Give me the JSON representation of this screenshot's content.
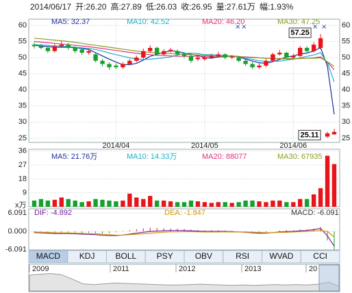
{
  "header": [
    "2014/06/17",
    "开:26.20",
    "高:27.89",
    "低:26.03",
    "收:26.95",
    "量:27.61万",
    "幅:1.93%"
  ],
  "chart_data": [
    {
      "type": "candlestick",
      "categories": [
        null,
        null,
        null,
        null,
        null,
        null,
        null,
        null,
        null,
        null,
        null,
        null,
        "2014/04",
        null,
        null,
        null,
        null,
        null,
        null,
        null,
        null,
        null,
        null,
        null,
        null,
        "2014/05",
        null,
        null,
        null,
        null,
        null,
        null,
        null,
        null,
        null,
        null,
        null,
        null,
        "2014/06",
        null,
        null,
        null,
        null,
        null,
        null
      ],
      "open": [
        54,
        53.5,
        53,
        52,
        53.5,
        54,
        53,
        52.5,
        51.5,
        51,
        49,
        48,
        47.5,
        47,
        48,
        49,
        50,
        52,
        53,
        51,
        52,
        52,
        51,
        50.5,
        49.5,
        49.5,
        50,
        50.5,
        51,
        50,
        50,
        49,
        48,
        47,
        47.5,
        49,
        51,
        51.5,
        50,
        50.5,
        53,
        52,
        53,
        25.5,
        26.2
      ],
      "high": [
        54.8,
        54.2,
        53.6,
        54.2,
        55,
        54.6,
        53.5,
        53,
        52.8,
        51.4,
        49.6,
        48.5,
        48.2,
        48.6,
        49.5,
        50.6,
        52.8,
        53.8,
        53.4,
        52.6,
        53,
        52.5,
        51.6,
        51,
        50.7,
        50.5,
        51.2,
        51.8,
        51.4,
        50.8,
        50.4,
        49.5,
        48.6,
        48.2,
        49.6,
        51.5,
        52.3,
        51.8,
        51.2,
        53.6,
        53.5,
        54.8,
        57.25,
        27,
        27.89
      ],
      "low": [
        52.8,
        52.5,
        51.4,
        51.6,
        53,
        52.4,
        51.4,
        50.8,
        50.9,
        48.5,
        47.2,
        46.2,
        46.4,
        46.5,
        47.6,
        48.6,
        49.6,
        51.5,
        50.5,
        50.6,
        51.5,
        50.4,
        49.8,
        48.3,
        48.9,
        49,
        49.6,
        50,
        49.4,
        49.5,
        48.5,
        47.4,
        46.4,
        46.5,
        47,
        48.6,
        50.6,
        49.5,
        49.6,
        50.2,
        51.4,
        51.6,
        52.5,
        25.11,
        26.03
      ],
      "close": [
        53.5,
        53,
        52,
        53.5,
        54,
        53,
        52,
        51.5,
        52,
        49,
        48,
        47,
        47,
        48,
        49,
        50,
        52,
        53,
        51,
        52,
        52.4,
        51,
        50.5,
        49,
        50,
        50,
        50.5,
        51,
        50,
        50.3,
        49,
        48,
        47,
        47.5,
        49,
        51,
        51.5,
        50,
        50.5,
        53,
        52,
        54,
        56,
        26.5,
        26.95
      ],
      "up_color": "#e8141a",
      "down_color": "#16a02e",
      "series": [
        {
          "name": "MA5: 32.37",
          "color": "#1c2a9a",
          "values": [
            53.8,
            53.6,
            53.4,
            53.2,
            53.2,
            53.2,
            53.1,
            52.8,
            52.5,
            51.5,
            50.5,
            49.5,
            48.6,
            47.8,
            47.8,
            48.2,
            49.2,
            50.4,
            51,
            51.6,
            52.1,
            51.9,
            51.4,
            51,
            50.6,
            50,
            49.8,
            50.2,
            50.3,
            50.4,
            50.2,
            49.5,
            48.9,
            48.4,
            48.2,
            48.7,
            49.4,
            50.2,
            50.5,
            51.1,
            51.4,
            52,
            53.1,
            47.3,
            32.37
          ]
        },
        {
          "name": "MA10: 42.52",
          "color": "#1aaec4",
          "values": [
            54,
            53.9,
            53.8,
            53.6,
            53.5,
            53.4,
            53.2,
            53,
            52.8,
            52.5,
            52,
            51.4,
            50.9,
            50.4,
            49.9,
            49.5,
            49.4,
            49.5,
            49.7,
            49.9,
            50.2,
            50.8,
            51.2,
            51.4,
            51.2,
            50.9,
            50.9,
            50.8,
            50.6,
            50.5,
            50.4,
            49.8,
            49.4,
            49,
            48.8,
            48.8,
            48.9,
            49.2,
            49.5,
            49.9,
            50.4,
            50.8,
            51.5,
            48.3,
            42.52
          ]
        },
        {
          "name": "MA20: 46.20",
          "color": "#e0307a",
          "values": [
            55,
            54.8,
            54.6,
            54.4,
            54.2,
            54,
            53.8,
            53.6,
            53.4,
            53.1,
            52.8,
            52.5,
            52.2,
            51.9,
            51.6,
            51.3,
            51.1,
            50.9,
            50.7,
            50.6,
            50.5,
            50.4,
            50.4,
            50.4,
            50.4,
            50.4,
            50.4,
            50.4,
            50.4,
            50.4,
            50.3,
            50.2,
            50.1,
            49.9,
            49.8,
            49.7,
            49.6,
            49.6,
            49.6,
            49.7,
            49.8,
            49.9,
            50.2,
            48.6,
            46.2
          ]
        },
        {
          "name": "MA30: 47.25",
          "color": "#8a9a1e",
          "values": [
            56,
            55.8,
            55.6,
            55.4,
            55.2,
            55,
            54.7,
            54.4,
            54.1,
            53.8,
            53.5,
            53.2,
            52.9,
            52.6,
            52.3,
            52,
            51.8,
            51.6,
            51.4,
            51.3,
            51.2,
            51.1,
            51,
            50.9,
            50.8,
            50.7,
            50.6,
            50.5,
            50.4,
            50.3,
            50.2,
            50.1,
            50,
            49.9,
            49.8,
            49.7,
            49.7,
            49.7,
            49.7,
            49.7,
            49.8,
            49.8,
            49.9,
            48.7,
            47.25
          ]
        }
      ],
      "ylim": [
        23.7,
        61.9
      ],
      "yticks": [
        25,
        30,
        35,
        40,
        45,
        50,
        55,
        60
      ],
      "grid": true,
      "annotations": [
        "57.25",
        "25.11"
      ]
    },
    {
      "type": "volume",
      "unit": "x万",
      "values": [
        4,
        5,
        4,
        4.5,
        6,
        5,
        4,
        3,
        3.5,
        5,
        4.5,
        4,
        3.5,
        4,
        8.5,
        6,
        5,
        7,
        4,
        4,
        3.5,
        3,
        3,
        4,
        3.5,
        3,
        2.5,
        3,
        3,
        2.5,
        3,
        4,
        4,
        3.5,
        3,
        4,
        4,
        3,
        3,
        5,
        5,
        8,
        12,
        33,
        27.61
      ],
      "legend": [
        {
          "name": "MA5: 21.76万",
          "color": "#1c2a9a"
        },
        {
          "name": "MA10: 14.33万",
          "color": "#1aaec4"
        },
        {
          "name": "MA20: 88077",
          "color": "#e0307a"
        },
        {
          "name": "MA30: 67935",
          "color": "#8a9a1e"
        }
      ],
      "ylim": [
        0,
        37.2
      ],
      "yticks": [
        9,
        18,
        27,
        36
      ],
      "grid": true
    },
    {
      "type": "macd",
      "histogram": {
        "name": "MACD: -6.091",
        "color": "#333333",
        "values": [
          -0.3,
          -0.4,
          -0.5,
          -0.5,
          -0.4,
          -0.4,
          -0.4,
          -0.5,
          -0.5,
          -0.6,
          -0.7,
          -0.6,
          -0.3,
          0.1,
          0.4,
          0.7,
          1,
          1.2,
          1.1,
          1,
          0.9,
          0.9,
          0.8,
          0.6,
          0.5,
          0.4,
          0.4,
          0.4,
          0.3,
          0.2,
          0,
          -0.2,
          -0.4,
          -0.5,
          -0.3,
          0,
          0.3,
          0.4,
          0.4,
          0.6,
          0.7,
          0.9,
          1.4,
          -3,
          -6.091
        ]
      },
      "series": [
        {
          "name": "DIF: -4.892",
          "color": "#7a1fa0",
          "values": [
            -0.4,
            -0.5,
            -0.6,
            -0.7,
            -0.7,
            -0.7,
            -0.8,
            -0.9,
            -1,
            -1.1,
            -1.3,
            -1.4,
            -1.4,
            -1.2,
            -0.9,
            -0.6,
            -0.3,
            0,
            0.1,
            0.2,
            0.3,
            0.3,
            0.3,
            0.2,
            0.1,
            0,
            0,
            0,
            0,
            -0.1,
            -0.2,
            -0.3,
            -0.5,
            -0.6,
            -0.6,
            -0.4,
            -0.2,
            -0.1,
            0,
            0.2,
            0.3,
            0.6,
            1,
            -1.5,
            -4.892
          ]
        },
        {
          "name": "DEA: -1.847",
          "color": "#d49a00",
          "values": [
            -0.2,
            -0.3,
            -0.35,
            -0.45,
            -0.5,
            -0.5,
            -0.6,
            -0.65,
            -0.75,
            -0.8,
            -0.95,
            -1.1,
            -1.25,
            -1.25,
            -1.1,
            -0.95,
            -0.8,
            -0.6,
            -0.45,
            -0.3,
            -0.15,
            -0.15,
            -0.1,
            -0.1,
            -0.15,
            -0.2,
            -0.2,
            -0.2,
            -0.15,
            -0.2,
            -0.2,
            -0.2,
            -0.3,
            -0.35,
            -0.45,
            -0.4,
            -0.35,
            -0.3,
            -0.2,
            -0.1,
            0,
            0.15,
            0.3,
            0,
            -1.847
          ]
        }
      ],
      "ylim": [
        -7.5,
        7.5
      ],
      "yticks": [
        6.091,
        {
          "value": 0,
          "label": "0.000"
        },
        -6.091
      ]
    }
  ],
  "tabs": [
    "MACD",
    "KDJ",
    "BOLL",
    "PSY",
    "OBV",
    "RSI",
    "WVAD",
    "CCI"
  ],
  "overview": {
    "labels": [
      "2009",
      "2011",
      "2012",
      "2013",
      "20"
    ],
    "values": [
      40,
      42,
      44,
      41,
      30,
      18,
      16,
      18,
      20,
      19,
      18,
      17,
      16,
      15,
      15,
      16,
      17,
      16,
      15,
      14,
      15,
      14,
      15,
      16,
      15,
      16,
      15,
      17,
      22,
      12
    ],
    "ylim": [
      0,
      50
    ]
  }
}
